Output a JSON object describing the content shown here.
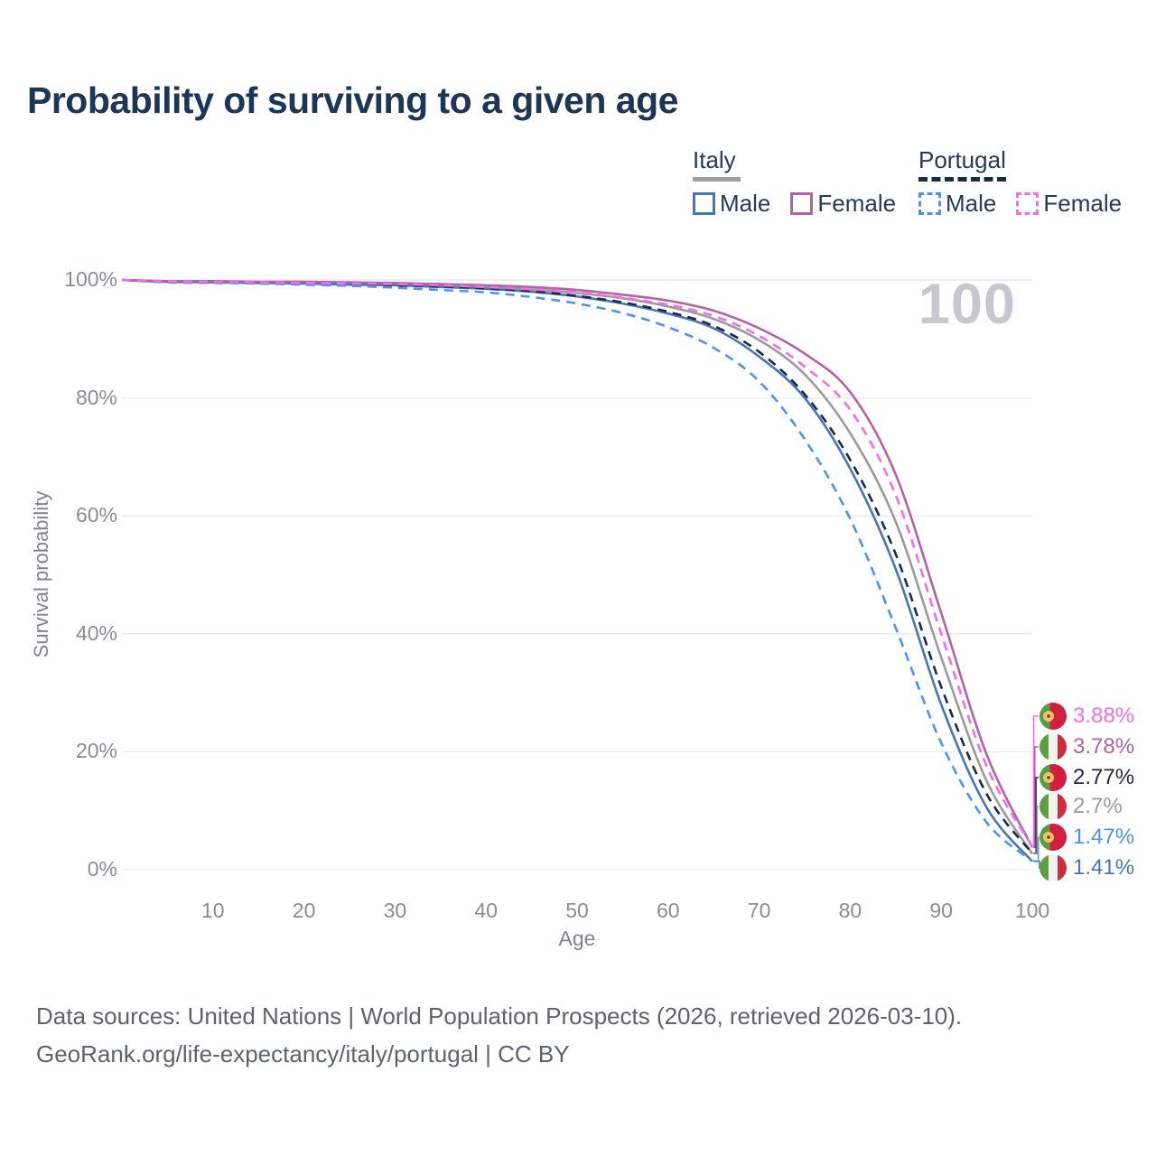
{
  "title": "Probability of surviving to a given age",
  "watermark": "100",
  "legend": {
    "groups": [
      {
        "label": "Italy",
        "underline_style": "solid",
        "underline_color": "#9e9e9e",
        "underline_width": 53,
        "items": [
          {
            "label": "Male",
            "color": "#4576b5",
            "dash": "solid"
          },
          {
            "label": "Female",
            "color": "#b263a6",
            "dash": "solid"
          }
        ]
      },
      {
        "label": "Portugal",
        "underline_style": "dashed",
        "underline_color": "#1c2b45",
        "underline_width": 97,
        "items": [
          {
            "label": "Male",
            "color": "#4e92f0",
            "dash": "dashed"
          },
          {
            "label": "Female",
            "color": "#f66ee4",
            "dash": "dashed"
          }
        ]
      }
    ]
  },
  "chart_data": {
    "type": "line",
    "title": "Probability of surviving to a given age",
    "xlabel": "Age",
    "ylabel": "Survival probability",
    "xlim": [
      0,
      100
    ],
    "ylim": [
      0,
      100
    ],
    "grid": "horizontal",
    "x_ticks": [
      10,
      20,
      30,
      40,
      50,
      60,
      70,
      80,
      90,
      100
    ],
    "y_ticks": [
      0,
      20,
      40,
      60,
      80,
      100
    ],
    "y_tick_labels": [
      "0%",
      "20%",
      "40%",
      "60%",
      "80%",
      "100%"
    ],
    "x": [
      0,
      5,
      10,
      15,
      20,
      25,
      30,
      35,
      40,
      45,
      50,
      55,
      60,
      65,
      70,
      75,
      80,
      85,
      90,
      95,
      100
    ],
    "series": [
      {
        "name": "Italy Both sexes",
        "country": "Italy",
        "group": "Both sexes",
        "style": "solid",
        "color": "#9b9b9b",
        "end_value": 2.7,
        "end_value_label": "2.7%",
        "values": [
          100,
          99.7,
          99.7,
          99.6,
          99.5,
          99.4,
          99.3,
          99.1,
          98.8,
          98.4,
          97.8,
          96.9,
          95.5,
          93.4,
          89.8,
          84.0,
          74.0,
          59.0,
          36.0,
          15.0,
          2.7
        ]
      },
      {
        "name": "Italy Male",
        "country": "Italy",
        "group": "Male",
        "style": "solid",
        "color": "#4576b5",
        "end_value": 1.41,
        "end_value_label": "1.41%",
        "values": [
          100,
          99.7,
          99.6,
          99.5,
          99.4,
          99.2,
          99.1,
          98.8,
          98.5,
          98.0,
          97.2,
          96.0,
          94.3,
          91.8,
          87.0,
          80.0,
          68.0,
          51.0,
          28.0,
          10.5,
          1.41
        ]
      },
      {
        "name": "Italy Female",
        "country": "Italy",
        "group": "Female",
        "style": "solid",
        "color": "#b263a6",
        "end_value": 3.78,
        "end_value_label": "3.78%",
        "values": [
          100,
          99.8,
          99.8,
          99.7,
          99.7,
          99.6,
          99.5,
          99.3,
          99.1,
          98.8,
          98.3,
          97.5,
          96.5,
          94.8,
          91.8,
          87.5,
          81.0,
          67.0,
          43.5,
          19.5,
          3.78
        ]
      },
      {
        "name": "Portugal Both sexes",
        "country": "Portugal",
        "group": "Both sexes",
        "style": "dashed",
        "color": "#1c2b45",
        "end_value": 2.77,
        "end_value_label": "2.77%",
        "values": [
          100,
          99.7,
          99.6,
          99.5,
          99.4,
          99.3,
          99.1,
          98.9,
          98.6,
          98.1,
          97.3,
          96.2,
          94.6,
          92.2,
          87.8,
          80.6,
          69.5,
          53.5,
          31.0,
          12.8,
          2.77
        ]
      },
      {
        "name": "Portugal Male",
        "country": "Portugal",
        "group": "Male",
        "style": "dashed",
        "color": "#4e92f0",
        "end_value": 1.47,
        "end_value_label": "1.47%",
        "values": [
          100,
          99.6,
          99.5,
          99.4,
          99.2,
          99.0,
          98.7,
          98.3,
          97.9,
          97.1,
          96.0,
          94.4,
          92.0,
          88.5,
          82.8,
          73.0,
          59.5,
          41.0,
          21.5,
          8.0,
          1.47
        ]
      },
      {
        "name": "Portugal Female",
        "country": "Portugal",
        "group": "Female",
        "style": "dashed",
        "color": "#f66ee4",
        "end_value": 3.88,
        "end_value_label": "3.88%",
        "values": [
          100,
          99.8,
          99.7,
          99.6,
          99.5,
          99.4,
          99.3,
          99.1,
          98.8,
          98.4,
          97.9,
          97.0,
          95.8,
          93.9,
          90.5,
          85.3,
          78.0,
          63.5,
          40.0,
          17.5,
          3.88
        ]
      }
    ],
    "annotation": "100"
  },
  "end_labels": [
    {
      "flag": "portugal",
      "text": "3.88%",
      "value": 3.88,
      "color": "#f66ee4",
      "series": "Portugal Female"
    },
    {
      "flag": "italy",
      "text": "3.78%",
      "value": 3.78,
      "color": "#b263a6",
      "series": "Italy Female"
    },
    {
      "flag": "portugal",
      "text": "2.77%",
      "value": 2.77,
      "color": "#1c2b45",
      "series": "Portugal Both sexes"
    },
    {
      "flag": "italy",
      "text": "2.7%",
      "value": 2.7,
      "color": "#9b9b9b",
      "series": "Italy Both sexes"
    },
    {
      "flag": "portugal",
      "text": "1.47%",
      "value": 1.47,
      "color": "#4e92f0",
      "series": "Portugal Male"
    },
    {
      "flag": "italy",
      "text": "1.41%",
      "value": 1.41,
      "color": "#4576b5",
      "series": "Italy Male"
    }
  ],
  "footer": {
    "line1": "Data sources: United Nations | World Population Prospects (2026, retrieved 2026-03-10).",
    "line2": "GeoRank.org/life-expectancy/italy/portugal | CC BY"
  }
}
